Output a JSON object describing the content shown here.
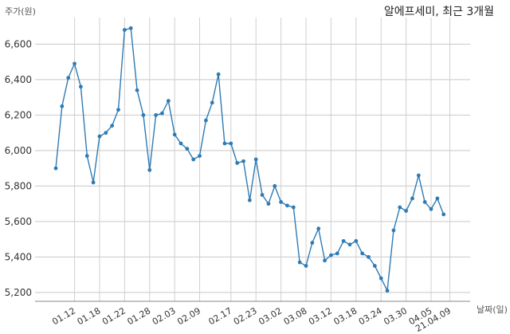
{
  "chart_data": {
    "type": "line",
    "title": "알에프세미, 최근 3개월",
    "ylabel": "주가(원)",
    "xlabel": "날짜(일)",
    "ylim": [
      5150,
      6750
    ],
    "yticks": [
      5200,
      5400,
      5600,
      5800,
      6000,
      6200,
      6400,
      6600
    ],
    "ytick_labels": [
      "5,200",
      "5,400",
      "5,600",
      "5,800",
      "6,000",
      "6,200",
      "6,400",
      "6,600"
    ],
    "xtick_labels": [
      "01.12",
      "01.18",
      "01.22",
      "01.28",
      "02.03",
      "02.09",
      "02.17",
      "02.23",
      "03.02",
      "03.08",
      "03.12",
      "03.18",
      "03.24",
      "03.30",
      "04.05",
      "21.04.09"
    ],
    "xtick_index": [
      3,
      7,
      11,
      15,
      19,
      23,
      28,
      32,
      36,
      40,
      44,
      48,
      52,
      56,
      60,
      63
    ],
    "grid": true,
    "color": "#2e7bb4",
    "series": [
      {
        "values": [
          5900,
          6250,
          6410,
          6490,
          6360,
          5970,
          5820,
          6080,
          6100,
          6140,
          6230,
          6680,
          6690,
          6340,
          6200,
          5890,
          6200,
          6210,
          6280,
          6090,
          6040,
          6010,
          5950,
          5970,
          6170,
          6270,
          6430,
          6040,
          6040,
          5930,
          5940,
          5720,
          5950,
          5750,
          5700,
          5800,
          5710,
          5690,
          5680,
          5370,
          5350,
          5480,
          5560,
          5380,
          5410,
          5420,
          5490,
          5470,
          5490,
          5420,
          5400,
          5350,
          5280,
          5210,
          5550,
          5680,
          5660,
          5730,
          5860,
          5710,
          5670,
          5730,
          5640
        ]
      }
    ]
  }
}
